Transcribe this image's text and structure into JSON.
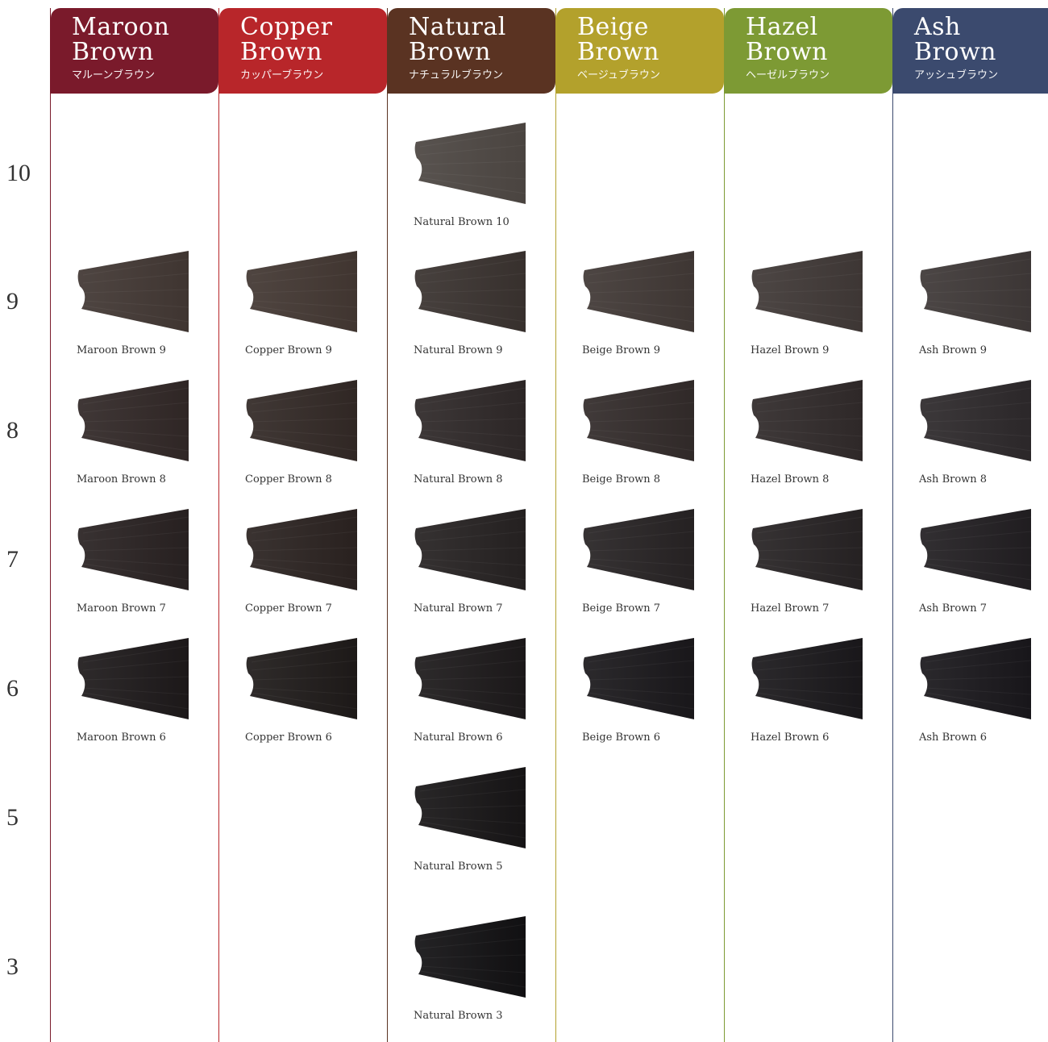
{
  "levels": [
    "10",
    "9",
    "8",
    "7",
    "6",
    "5",
    "3"
  ],
  "columns": [
    {
      "name_line1": "Maroon",
      "name_line2": "Brown",
      "name_jp": "マルーンブラウン",
      "color": "#7a1a2b",
      "swatches": [
        {
          "level": "9",
          "label": "Maroon Brown 9",
          "shade": "#3f3531"
        },
        {
          "level": "8",
          "label": "Maroon Brown 8",
          "shade": "#2f2625"
        },
        {
          "level": "7",
          "label": "Maroon Brown 7",
          "shade": "#272020"
        },
        {
          "level": "6",
          "label": "Maroon Brown 6",
          "shade": "#1c1819"
        }
      ]
    },
    {
      "name_line1": "Copper",
      "name_line2": "Brown",
      "name_jp": "カッパーブラウン",
      "color": "#b8262a",
      "swatches": [
        {
          "level": "9",
          "label": "Copper Brown 9",
          "shade": "#403530"
        },
        {
          "level": "8",
          "label": "Copper Brown 8",
          "shade": "#302724"
        },
        {
          "level": "7",
          "label": "Copper Brown 7",
          "shade": "#29211f"
        },
        {
          "level": "6",
          "label": "Copper Brown 6",
          "shade": "#1d1918"
        }
      ]
    },
    {
      "name_line1": "Natural",
      "name_line2": "Brown",
      "name_jp": "ナチュラルブラウン",
      "color": "#5a3322",
      "swatches": [
        {
          "level": "10",
          "label": "Natural Brown 10",
          "shade": "#4a4440"
        },
        {
          "level": "9",
          "label": "Natural Brown 9",
          "shade": "#37302d"
        },
        {
          "level": "8",
          "label": "Natural Brown 8",
          "shade": "#2c2626"
        },
        {
          "level": "7",
          "label": "Natural Brown 7",
          "shade": "#242020"
        },
        {
          "level": "6",
          "label": "Natural Brown 6",
          "shade": "#1b1819"
        },
        {
          "level": "5",
          "label": "Natural Brown 5",
          "shade": "#161415"
        },
        {
          "level": "3",
          "label": "Natural Brown 3",
          "shade": "#111012"
        }
      ]
    },
    {
      "name_line1": "Beige",
      "name_line2": "Brown",
      "name_jp": "ベージュブラウン",
      "color": "#b3a12c",
      "swatches": [
        {
          "level": "9",
          "label": "Beige Brown 9",
          "shade": "#3e3633"
        },
        {
          "level": "8",
          "label": "Beige Brown 8",
          "shade": "#302928"
        },
        {
          "level": "7",
          "label": "Beige Brown 7",
          "shade": "#252122"
        },
        {
          "level": "6",
          "label": "Beige Brown 6",
          "shade": "#19171a"
        }
      ]
    },
    {
      "name_line1": "Hazel",
      "name_line2": "Brown",
      "name_jp": "ヘーゼルブラウン",
      "color": "#7d9a34",
      "swatches": [
        {
          "level": "9",
          "label": "Hazel Brown 9",
          "shade": "#3d3634"
        },
        {
          "level": "8",
          "label": "Hazel Brown 8",
          "shade": "#2e2828"
        },
        {
          "level": "7",
          "label": "Hazel Brown 7",
          "shade": "#252122"
        },
        {
          "level": "6",
          "label": "Hazel Brown 6",
          "shade": "#19171a"
        }
      ]
    },
    {
      "name_line1": "Ash",
      "name_line2": "Brown",
      "name_jp": "アッシュブラウン",
      "color": "#3b4a6e",
      "swatches": [
        {
          "level": "9",
          "label": "Ash Brown 9",
          "shade": "#3c3635"
        },
        {
          "level": "8",
          "label": "Ash Brown 8",
          "shade": "#2b2729"
        },
        {
          "level": "7",
          "label": "Ash Brown 7",
          "shade": "#201d20"
        },
        {
          "level": "6",
          "label": "Ash Brown 6",
          "shade": "#18161a"
        }
      ]
    }
  ]
}
